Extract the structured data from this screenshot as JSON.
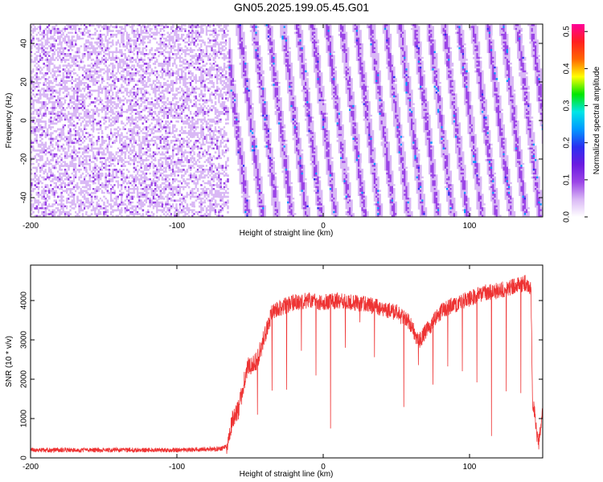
{
  "title": "GN05.2025.199.05.45.G01",
  "chart_data": [
    {
      "type": "heatmap",
      "xlabel": "Height of straight line (km)",
      "ylabel": "Frequency (Hz)",
      "xlim": [
        -200,
        150
      ],
      "ylim": [
        -50,
        50
      ],
      "x_ticks": [
        -200,
        -100,
        0,
        100
      ],
      "y_ticks": [
        -40,
        -20,
        0,
        20,
        40
      ],
      "colorbar": {
        "label": "Normalized spectral amplitude",
        "range": [
          0,
          0.52
        ],
        "ticks": [
          0.0,
          0.1,
          0.2,
          0.3,
          0.4,
          0.5
        ],
        "tick_labels": [
          "0.0",
          "0.1",
          "0.2",
          "0.3",
          "0.4",
          "0.5"
        ],
        "colors": [
          "#ffffff",
          "#d9b8f5",
          "#9b45e6",
          "#6a1be0",
          "#2a2ff0",
          "#0099ff",
          "#00e6e6",
          "#00e600",
          "#ffff00",
          "#ff6600",
          "#ff2020",
          "#ff0099"
        ]
      },
      "pattern": {
        "noise_region_x": [
          -200,
          -65
        ],
        "fringe_start_x": -65,
        "fringe_period_km": 10,
        "fringe_tilt_km": 8,
        "amplitude_typical": 0.06,
        "amplitude_peak": 0.2
      }
    },
    {
      "type": "line",
      "xlabel": "Height of straight line (km)",
      "ylabel": "SNR (10 * v/v)",
      "xlim": [
        -200,
        150
      ],
      "ylim": [
        0,
        4900
      ],
      "x_ticks": [
        -200,
        -100,
        0,
        100
      ],
      "y_ticks": [
        0,
        1000,
        2000,
        3000,
        4000
      ],
      "series": [
        {
          "color": "#ee3333",
          "profile": [
            [
              -200,
              200
            ],
            [
              -150,
              200
            ],
            [
              -100,
              200
            ],
            [
              -70,
              230
            ],
            [
              -66,
              300
            ],
            [
              -62,
              1000
            ],
            [
              -58,
              1200
            ],
            [
              -52,
              2300
            ],
            [
              -45,
              2500
            ],
            [
              -40,
              3100
            ],
            [
              -35,
              3700
            ],
            [
              -30,
              3800
            ],
            [
              -20,
              3950
            ],
            [
              -10,
              4000
            ],
            [
              0,
              3950
            ],
            [
              10,
              4000
            ],
            [
              20,
              3950
            ],
            [
              30,
              3900
            ],
            [
              40,
              3800
            ],
            [
              50,
              3700
            ],
            [
              60,
              3400
            ],
            [
              65,
              2950
            ],
            [
              70,
              3200
            ],
            [
              80,
              3700
            ],
            [
              90,
              3900
            ],
            [
              100,
              4050
            ],
            [
              110,
              4200
            ],
            [
              120,
              4250
            ],
            [
              130,
              4350
            ],
            [
              138,
              4450
            ],
            [
              142,
              4300
            ],
            [
              143,
              1500
            ],
            [
              145,
              1000
            ],
            [
              147,
              300
            ],
            [
              150,
              1300
            ]
          ],
          "dip_period_km": 10,
          "dip_start_km": -45,
          "dip_end_km": 140,
          "dip_min_snr": 400
        }
      ]
    }
  ]
}
